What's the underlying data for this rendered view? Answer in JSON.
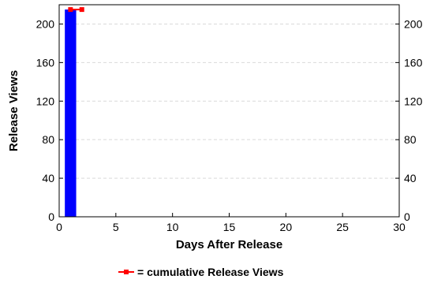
{
  "chart_data": {
    "type": "bar",
    "xlabel": "Days After Release",
    "ylabel": "Release Views",
    "xlim": [
      0,
      30
    ],
    "ylim": [
      0,
      220
    ],
    "x_ticks": [
      "0",
      "5",
      "10",
      "15",
      "20",
      "25",
      "30"
    ],
    "x_tick_values": [
      0,
      5,
      10,
      15,
      20,
      25,
      30
    ],
    "y_ticks_left": [
      "0",
      "40",
      "80",
      "120",
      "160",
      "200"
    ],
    "y_ticks_right": [
      "0",
      "40",
      "80",
      "120",
      "160",
      "200"
    ],
    "y_tick_values": [
      0,
      40,
      80,
      120,
      160,
      200
    ],
    "grid": true,
    "series": [
      {
        "kind": "bar",
        "color": "#0000ff",
        "points": [
          {
            "x": 1,
            "y": 215
          }
        ]
      },
      {
        "kind": "line",
        "name": "= cumulative Release Views",
        "color": "#ff0000",
        "marker": "square",
        "points": [
          {
            "x": 1,
            "y": 215
          },
          {
            "x": 2,
            "y": 215
          }
        ]
      }
    ],
    "legend": {
      "placement": "bottom-center",
      "label": "= cumulative Release Views"
    }
  }
}
